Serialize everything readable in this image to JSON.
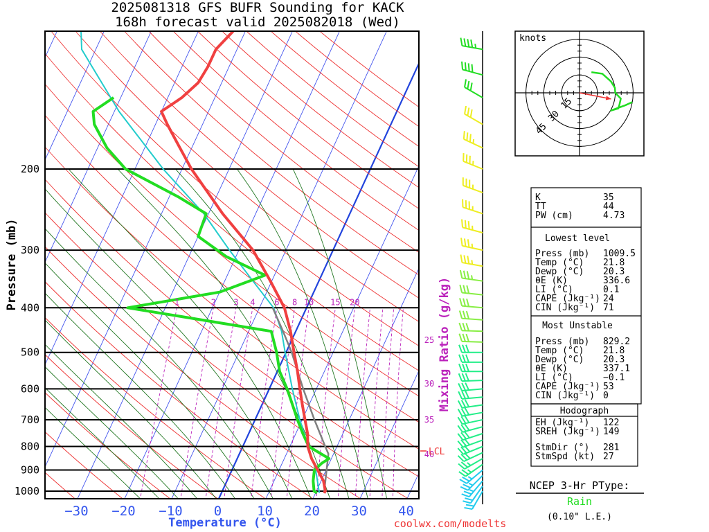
{
  "header": {
    "line1": "2025081318 GFS BUFR Sounding for KACK",
    "line2": "168h forecast valid 2025082018 (Wed)"
  },
  "colors": {
    "temperature": "#f04040",
    "dewpoint": "#22dd22",
    "wetbulb": "#22cccc",
    "isotherm": "#4455ee",
    "dry_adiabat": "#ee3333",
    "moist_adiabat": "#227722",
    "mixing_ratio": "#bb22bb",
    "parcel": "#808080",
    "zero_isotherm": "#2244dd",
    "hodograph": "#22dd22",
    "storm_motion": "#ee3333"
  },
  "chart_data": {
    "type": "skew-t",
    "title": "2025081318 GFS BUFR Sounding for KACK",
    "subtitle": "168h forecast valid 2025082018 (Wed)",
    "xlabel": "Temperature (°C)",
    "ylabel": "Pressure (mb)",
    "x_ticks": [
      "−30",
      "−20",
      "−10",
      "0",
      "10",
      "20",
      "30",
      "40"
    ],
    "x_tick_values": [
      -30,
      -20,
      -10,
      0,
      10,
      20,
      30,
      40
    ],
    "y_ticks": [
      "200",
      "300",
      "400",
      "500",
      "600",
      "700",
      "800",
      "900",
      "1000"
    ],
    "y_tick_values": [
      200,
      300,
      400,
      500,
      600,
      700,
      800,
      900,
      1000
    ],
    "xlim": [
      -40,
      40
    ],
    "ylim": [
      1050,
      100
    ],
    "y_scale": "log",
    "skew": "isotherms tilted right with height",
    "mixing_ratio_label": "Mixing Ratio (g/kg)",
    "mixing_ratio_values": [
      1,
      2,
      3,
      4,
      6,
      8,
      10,
      15,
      20,
      25,
      30,
      35,
      40
    ],
    "mixing_ratio_labels": [
      "1",
      "2",
      "3",
      "4",
      "6",
      "8",
      "10",
      "15",
      "20",
      "25",
      "30",
      "35",
      "40"
    ],
    "lcl_label": "LCL",
    "lcl_pressure": 830,
    "series": [
      {
        "name": "Temperature",
        "points": [
          [
            1009.5,
            21.8
          ],
          [
            1000,
            21.9
          ],
          [
            950,
            20.5
          ],
          [
            900,
            18.2
          ],
          [
            850,
            15.8
          ],
          [
            800,
            13.8
          ],
          [
            750,
            12.5
          ],
          [
            700,
            10.6
          ],
          [
            650,
            8.6
          ],
          [
            600,
            6.5
          ],
          [
            550,
            4.3
          ],
          [
            500,
            1.7
          ],
          [
            450,
            -1.1
          ],
          [
            400,
            -4.7
          ],
          [
            350,
            -10.3
          ],
          [
            300,
            -17.0
          ],
          [
            250,
            -27.0
          ],
          [
            200,
            -38.0
          ],
          [
            180,
            -42.5
          ],
          [
            160,
            -47.5
          ],
          [
            150,
            -50.0
          ],
          [
            140,
            -47.0
          ],
          [
            130,
            -45.0
          ],
          [
            120,
            -44.5
          ],
          [
            110,
            -44.5
          ],
          [
            100,
            -42.5
          ]
        ]
      },
      {
        "name": "Dewpoint",
        "points": [
          [
            1009.5,
            20.3
          ],
          [
            1000,
            19.5
          ],
          [
            950,
            18.3
          ],
          [
            900,
            17.5
          ],
          [
            870,
            18.4
          ],
          [
            850,
            19.5
          ],
          [
            800,
            14.0
          ],
          [
            750,
            11.5
          ],
          [
            700,
            9.0
          ],
          [
            650,
            6.5
          ],
          [
            600,
            3.8
          ],
          [
            550,
            0.5
          ],
          [
            500,
            -2.0
          ],
          [
            450,
            -5.2
          ],
          [
            400,
            -38.0
          ],
          [
            370,
            -20.0
          ],
          [
            340,
            -12.0
          ],
          [
            310,
            -22.0
          ],
          [
            280,
            -30.0
          ],
          [
            250,
            -30.5
          ],
          [
            230,
            -38.0
          ],
          [
            200,
            -52.0
          ],
          [
            180,
            -58.0
          ],
          [
            160,
            -63.0
          ],
          [
            150,
            -64.5
          ],
          [
            140,
            -61.5
          ]
        ]
      },
      {
        "name": "Wet bulb",
        "points": [
          [
            1009.5,
            20.8
          ],
          [
            900,
            17.8
          ],
          [
            800,
            13.9
          ],
          [
            700,
            9.5
          ],
          [
            600,
            4.9
          ],
          [
            500,
            -0.2
          ],
          [
            450,
            -3.0
          ],
          [
            400,
            -7.0
          ],
          [
            350,
            -14.0
          ],
          [
            300,
            -22.0
          ],
          [
            250,
            -31.0
          ],
          [
            200,
            -44.0
          ],
          [
            150,
            -59.0
          ],
          [
            110,
            -73.0
          ],
          [
            100,
            -75.0
          ]
        ]
      },
      {
        "name": "Parcel",
        "points": [
          [
            1009.5,
            21.8
          ],
          [
            830,
            18.9
          ],
          [
            800,
            17.5
          ],
          [
            700,
            12.6
          ],
          [
            600,
            7.2
          ],
          [
            500,
            1.2
          ],
          [
            450,
            -2.7
          ],
          [
            400,
            -7.2
          ]
        ]
      }
    ],
    "wind_barbs": [
      {
        "p": 1000,
        "dir": 210,
        "spd": 20
      },
      {
        "p": 975,
        "dir": 215,
        "spd": 22
      },
      {
        "p": 950,
        "dir": 220,
        "spd": 24
      },
      {
        "p": 925,
        "dir": 225,
        "spd": 25
      },
      {
        "p": 900,
        "dir": 230,
        "spd": 25
      },
      {
        "p": 875,
        "dir": 235,
        "spd": 26
      },
      {
        "p": 850,
        "dir": 240,
        "spd": 27
      },
      {
        "p": 825,
        "dir": 245,
        "spd": 28
      },
      {
        "p": 800,
        "dir": 248,
        "spd": 28
      },
      {
        "p": 775,
        "dir": 250,
        "spd": 29
      },
      {
        "p": 750,
        "dir": 252,
        "spd": 30
      },
      {
        "p": 725,
        "dir": 255,
        "spd": 30
      },
      {
        "p": 700,
        "dir": 258,
        "spd": 30
      },
      {
        "p": 675,
        "dir": 260,
        "spd": 30
      },
      {
        "p": 650,
        "dir": 262,
        "spd": 30
      },
      {
        "p": 625,
        "dir": 265,
        "spd": 30
      },
      {
        "p": 600,
        "dir": 265,
        "spd": 30
      },
      {
        "p": 575,
        "dir": 268,
        "spd": 30
      },
      {
        "p": 550,
        "dir": 270,
        "spd": 30
      },
      {
        "p": 525,
        "dir": 270,
        "spd": 30
      },
      {
        "p": 500,
        "dir": 270,
        "spd": 30
      },
      {
        "p": 475,
        "dir": 272,
        "spd": 30
      },
      {
        "p": 450,
        "dir": 272,
        "spd": 30
      },
      {
        "p": 425,
        "dir": 274,
        "spd": 30
      },
      {
        "p": 400,
        "dir": 275,
        "spd": 30
      },
      {
        "p": 375,
        "dir": 276,
        "spd": 32
      },
      {
        "p": 350,
        "dir": 278,
        "spd": 35
      },
      {
        "p": 325,
        "dir": 280,
        "spd": 35
      },
      {
        "p": 300,
        "dir": 282,
        "spd": 35
      },
      {
        "p": 275,
        "dir": 285,
        "spd": 35
      },
      {
        "p": 250,
        "dir": 288,
        "spd": 35
      },
      {
        "p": 225,
        "dir": 290,
        "spd": 35
      },
      {
        "p": 200,
        "dir": 292,
        "spd": 35
      },
      {
        "p": 180,
        "dir": 295,
        "spd": 35
      },
      {
        "p": 160,
        "dir": 300,
        "spd": 30
      },
      {
        "p": 140,
        "dir": 300,
        "spd": 30
      },
      {
        "p": 125,
        "dir": 285,
        "spd": 40
      },
      {
        "p": 110,
        "dir": 280,
        "spd": 45
      }
    ]
  },
  "hodograph": {
    "units_label": "knots",
    "ring_labels": [
      "15",
      "30",
      "45"
    ],
    "ring_values": [
      15,
      30,
      45
    ],
    "points": [
      [
        210,
        20
      ],
      [
        230,
        25
      ],
      [
        250,
        28
      ],
      [
        262,
        30
      ],
      [
        270,
        30
      ],
      [
        278,
        35
      ],
      [
        288,
        35
      ],
      [
        292,
        35
      ],
      [
        300,
        30
      ],
      [
        285,
        40
      ],
      [
        280,
        45
      ]
    ],
    "storm_motion": {
      "dir": 281,
      "spd": 27
    }
  },
  "indices": {
    "top": [
      {
        "label": "K",
        "value": "35"
      },
      {
        "label": "TT",
        "value": "44"
      },
      {
        "label": "PW (cm)",
        "value": "4.73"
      }
    ],
    "lowest_title": "Lowest level",
    "lowest": [
      {
        "label": "Press (mb)",
        "value": "1009.5"
      },
      {
        "label": "Temp (°C)",
        "value": "21.8"
      },
      {
        "label": "Dewp (°C)",
        "value": "20.3"
      },
      {
        "label": "θE (K)",
        "value": "336.6"
      },
      {
        "label": "LI (°C)",
        "value": "0.1"
      },
      {
        "label": "CAPE (Jkg⁻¹)",
        "value": "24"
      },
      {
        "label": "CIN (Jkg⁻¹)",
        "value": "71"
      }
    ],
    "unstable_title": "Most Unstable",
    "unstable": [
      {
        "label": "Press (mb)",
        "value": "829.2"
      },
      {
        "label": "Temp (°C)",
        "value": "21.8"
      },
      {
        "label": "Dewp (°C)",
        "value": "20.3"
      },
      {
        "label": "θE (K)",
        "value": "337.1"
      },
      {
        "label": "LI (°C)",
        "value": "−0.1"
      },
      {
        "label": "CAPE (Jkg⁻¹)",
        "value": "53"
      },
      {
        "label": "CIN (Jkg⁻¹)",
        "value": "0"
      }
    ],
    "hodo_title": "Hodograph",
    "hodo": [
      {
        "label": "EH (Jkg⁻¹)",
        "value": "122"
      },
      {
        "label": "SREH (Jkg⁻¹)",
        "value": "149"
      },
      {
        "label": "StmDir (°)",
        "value": "281"
      },
      {
        "label": "StmSpd (kt)",
        "value": "27"
      }
    ]
  },
  "ptype": {
    "title": "NCEP 3-Hr PType:",
    "value": "Rain",
    "amount": "(0.10\" L.E.)"
  },
  "footer": {
    "site": "coolwx.com/modelts"
  }
}
